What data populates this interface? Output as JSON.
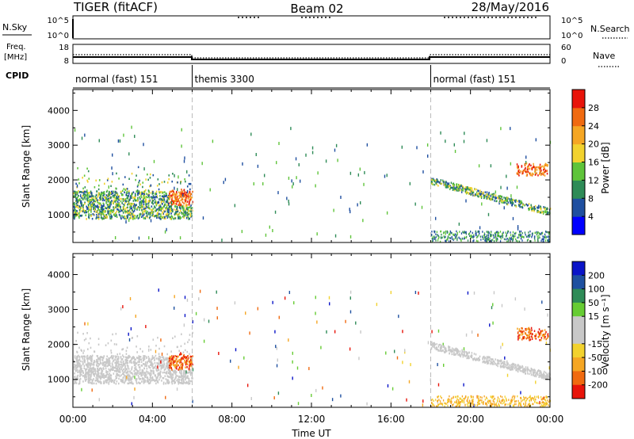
{
  "header": {
    "station": "TIGER (fitACF)",
    "beam": "Beam 02",
    "date": "28/May/2016"
  },
  "status_panel": {
    "nsky_label": "N.Sky",
    "nsky_ticks": [
      "10^5",
      "10^0"
    ],
    "nsearch_label": "N.Search",
    "nsearch_ticks": [
      "10^5",
      "10^0"
    ],
    "freq_label_1": "Freq.",
    "freq_label_2": "[MHz]",
    "freq_ticks": [
      "18",
      "8"
    ],
    "nave_label": "Nave",
    "nave_ticks": [
      "60",
      "0"
    ],
    "cpid_label": "CPID",
    "cpid_segments": [
      {
        "label": "normal (fast) 151",
        "start_hour": 0,
        "end_hour": 6
      },
      {
        "label": "themis 3300",
        "start_hour": 6,
        "end_hour": 18
      },
      {
        "label": "normal (fast) 151",
        "start_hour": 18,
        "end_hour": 24
      }
    ]
  },
  "colors": {
    "power_scale": [
      "#0000ff",
      "#1f4fa0",
      "#2e8b57",
      "#5fc43a",
      "#f2d22e",
      "#f5a623",
      "#f06a10",
      "#e8140a"
    ],
    "velocity_scale": [
      "#0a14c8",
      "#1e50a0",
      "#2e8b57",
      "#66cc33",
      "#c8c8c8",
      "#c8c8c8",
      "#f2d22e",
      "#f5a623",
      "#f06a10",
      "#e8140a"
    ]
  },
  "chart_data": [
    {
      "type": "heatmap",
      "name": "power",
      "ylabel": "Slant Range [km]",
      "yticks": [
        "1000",
        "2000",
        "3000",
        "4000"
      ],
      "ylim": [
        200,
        4600
      ],
      "xlim_hours": [
        0,
        24
      ],
      "colorbar_label": "Power [dB]",
      "colorbar_ticks": [
        "4",
        "8",
        "12",
        "16",
        "20",
        "24",
        "28"
      ],
      "colorbar_range": [
        0,
        32
      ]
    },
    {
      "type": "heatmap",
      "name": "velocity",
      "ylabel": "Slant Range [km]",
      "yticks": [
        "1000",
        "2000",
        "3000",
        "4000"
      ],
      "ylim": [
        200,
        4600
      ],
      "xlim_hours": [
        0,
        24
      ],
      "xlabel": "Time UT",
      "xticks": [
        "00:00",
        "04:00",
        "08:00",
        "12:00",
        "16:00",
        "20:00",
        "00:00"
      ],
      "colorbar_label": "Velocity [m s⁻¹]",
      "colorbar_ticks": [
        "200",
        "100",
        "50",
        "15",
        "-15",
        "-50",
        "-100",
        "-200"
      ]
    }
  ]
}
